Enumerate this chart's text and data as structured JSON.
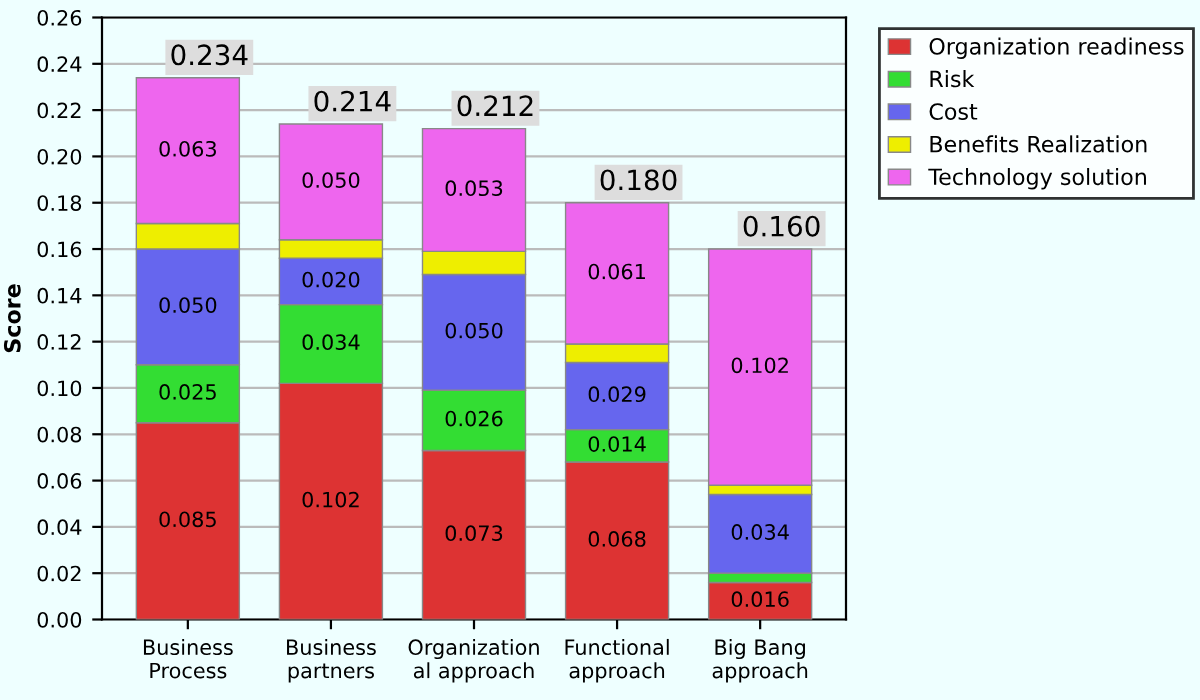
{
  "chart_data": {
    "type": "bar",
    "stacked": true,
    "ylabel": "Score",
    "categories": [
      "Business\nProcess",
      "Business\npartners",
      "Organization\nal approach",
      "Functional\napproach",
      "Big Bang\napproach"
    ],
    "series": [
      {
        "name": "Organization readiness",
        "color": "#dd3333",
        "values": [
          0.085,
          0.102,
          0.073,
          0.068,
          0.016
        ],
        "value_labels": [
          "0.085",
          "0.102",
          "0.073",
          "0.068",
          "0.016"
        ]
      },
      {
        "name": "Risk",
        "color": "#33dd33",
        "values": [
          0.025,
          0.034,
          0.026,
          0.014,
          0.004
        ],
        "value_labels": [
          "0.025",
          "0.034",
          "0.026",
          "0.014",
          null
        ]
      },
      {
        "name": "Cost",
        "color": "#6666ee",
        "values": [
          0.05,
          0.02,
          0.05,
          0.029,
          0.034
        ],
        "value_labels": [
          "0.050",
          "0.020",
          "0.050",
          "0.029",
          "0.034"
        ]
      },
      {
        "name": "Benefits Realization",
        "color": "#eeee00",
        "values": [
          0.011,
          0.008,
          0.01,
          0.008,
          0.004
        ],
        "value_labels": [
          null,
          null,
          null,
          null,
          null
        ]
      },
      {
        "name": "Technology solution",
        "color": "#ee66ee",
        "values": [
          0.063,
          0.05,
          0.053,
          0.061,
          0.102
        ],
        "value_labels": [
          "0.063",
          "0.050",
          "0.053",
          "0.061",
          "0.102"
        ]
      }
    ],
    "totals": [
      "0.234",
      "0.214",
      "0.212",
      "0.180",
      "0.160"
    ],
    "ylim": [
      0,
      0.26
    ],
    "yticks": [
      {
        "value": 0,
        "label": "0.00"
      },
      {
        "value": 0.02,
        "label": "0.02"
      },
      {
        "value": 0.04,
        "label": "0.04"
      },
      {
        "value": 0.06,
        "label": "0.06"
      },
      {
        "value": 0.08,
        "label": "0.08"
      },
      {
        "value": 0.1,
        "label": "0.10"
      },
      {
        "value": 0.12,
        "label": "0.12"
      },
      {
        "value": 0.14,
        "label": "0.14"
      },
      {
        "value": 0.16,
        "label": "0.16"
      },
      {
        "value": 0.18,
        "label": "0.18"
      },
      {
        "value": 0.2,
        "label": "0.20"
      },
      {
        "value": 0.22,
        "label": "0.22"
      },
      {
        "value": 0.24,
        "label": "0.24"
      },
      {
        "value": 0.26,
        "label": "0.26"
      }
    ],
    "grid": "y",
    "legend": "top right"
  }
}
